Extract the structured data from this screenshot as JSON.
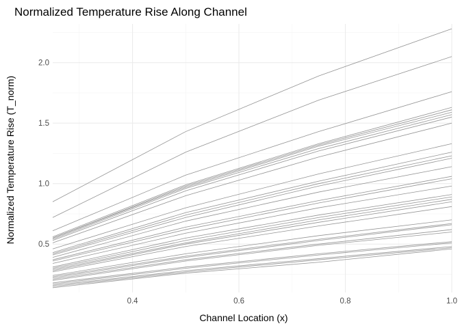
{
  "chart_data": {
    "type": "line",
    "title": "Normalized Temperature Rise Along Channel",
    "xlabel": "Channel Location (x)",
    "ylabel": "Normalized Temperature Rise (T_norm)",
    "xlim": [
      0.25,
      1.0
    ],
    "ylim": [
      0.1,
      2.32
    ],
    "x_ticks": [
      0.4,
      0.6,
      0.8,
      1.0
    ],
    "y_ticks": [
      0.5,
      1.0,
      1.5,
      2.0
    ],
    "grid": true,
    "line_color": "#7f7f7f",
    "x": [
      0.25,
      0.5,
      0.75,
      1.0
    ],
    "series": [
      {
        "values": [
          0.85,
          1.43,
          1.89,
          2.28
        ]
      },
      {
        "values": [
          0.72,
          1.26,
          1.69,
          2.05
        ]
      },
      {
        "values": [
          0.61,
          1.07,
          1.43,
          1.76
        ]
      },
      {
        "values": [
          0.56,
          0.99,
          1.33,
          1.63
        ]
      },
      {
        "values": [
          0.55,
          0.98,
          1.32,
          1.61
        ]
      },
      {
        "values": [
          0.55,
          0.97,
          1.31,
          1.59
        ]
      },
      {
        "values": [
          0.54,
          0.96,
          1.29,
          1.57
        ]
      },
      {
        "values": [
          0.53,
          0.94,
          1.27,
          1.55
        ]
      },
      {
        "values": [
          0.51,
          0.9,
          1.22,
          1.5
        ]
      },
      {
        "values": [
          0.46,
          0.8,
          1.08,
          1.33
        ]
      },
      {
        "values": [
          0.43,
          0.76,
          1.02,
          1.26
        ]
      },
      {
        "values": [
          0.42,
          0.74,
          1.0,
          1.23
        ]
      },
      {
        "values": [
          0.41,
          0.72,
          0.98,
          1.21
        ]
      },
      {
        "values": [
          0.39,
          0.69,
          0.93,
          1.14
        ]
      },
      {
        "values": [
          0.37,
          0.64,
          0.86,
          1.06
        ]
      },
      {
        "values": [
          0.36,
          0.62,
          0.84,
          1.04
        ]
      },
      {
        "values": [
          0.34,
          0.59,
          0.8,
          0.98
        ]
      },
      {
        "values": [
          0.31,
          0.55,
          0.74,
          0.91
        ]
      },
      {
        "values": [
          0.3,
          0.53,
          0.72,
          0.89
        ]
      },
      {
        "values": [
          0.29,
          0.51,
          0.7,
          0.87
        ]
      },
      {
        "values": [
          0.28,
          0.5,
          0.68,
          0.85
        ]
      },
      {
        "values": [
          0.27,
          0.48,
          0.65,
          0.81
        ]
      },
      {
        "values": [
          0.24,
          0.42,
          0.57,
          0.7
        ]
      },
      {
        "values": [
          0.23,
          0.4,
          0.54,
          0.67
        ]
      },
      {
        "values": [
          0.22,
          0.39,
          0.53,
          0.66
        ]
      },
      {
        "values": [
          0.21,
          0.37,
          0.5,
          0.62
        ]
      },
      {
        "values": [
          0.2,
          0.36,
          0.49,
          0.6
        ]
      },
      {
        "values": [
          0.18,
          0.31,
          0.42,
          0.52
        ]
      },
      {
        "values": [
          0.17,
          0.3,
          0.41,
          0.51
        ]
      },
      {
        "values": [
          0.16,
          0.28,
          0.38,
          0.48
        ]
      },
      {
        "values": [
          0.15,
          0.27,
          0.37,
          0.47
        ]
      },
      {
        "values": [
          0.14,
          0.26,
          0.35,
          0.46
        ]
      }
    ]
  }
}
